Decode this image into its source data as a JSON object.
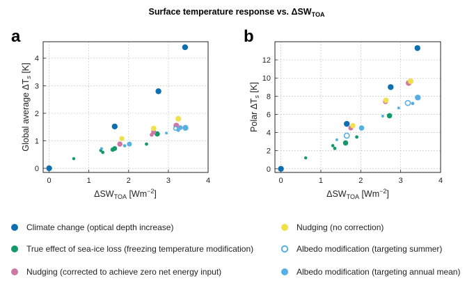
{
  "figure": {
    "title": "Surface temperature response vs. ΔSW",
    "title_sub": "TOA"
  },
  "colors": {
    "climate_change": "#0e6fb0",
    "sea_ice": "#13986a",
    "nudging_corrected": "#cf78a8",
    "nudging_no_corr": "#f1e04a",
    "albedo_summer": "#56b0e3",
    "albedo_annual": "#56b0e3"
  },
  "legend": [
    {
      "key": "climate_change",
      "label": "Climate change (optical depth increase)",
      "marker": "filled"
    },
    {
      "key": "sea_ice",
      "label": "True effect of sea-ice loss (freezing temperature modification)",
      "marker": "filled"
    },
    {
      "key": "nudging_corrected",
      "label": "Nudging (corrected to achieve zero net energy input)",
      "marker": "filled"
    },
    {
      "key": "nudging_no_corr",
      "label": "Nudging (no correction)",
      "marker": "filled"
    },
    {
      "key": "albedo_summer",
      "label": "Albedo modification (targeting summer)",
      "marker": "hollow"
    },
    {
      "key": "albedo_annual",
      "label": "Albedo modification (targeting annual mean)",
      "marker": "filled"
    }
  ],
  "chart_data": [
    {
      "type": "scatter",
      "panel": "a",
      "xlabel_main": "ΔSW",
      "xlabel_sub": "TOA",
      "xlabel_units": "[Wm",
      "xlabel_exp": "−2",
      "xlabel_close": "]",
      "ylabel": "Global average ΔT",
      "ylabel_sub": "s",
      "ylabel_units": " [K]",
      "xlim": [
        -0.15,
        4.0
      ],
      "ylim": [
        -0.15,
        4.6
      ],
      "xticks": [
        0,
        1,
        2,
        3,
        4
      ],
      "yticks": [
        0,
        1,
        2,
        3,
        4
      ],
      "grid": true,
      "series": [
        {
          "key": "climate_change",
          "name": "Climate change (optical depth increase)",
          "x": [
            0.0,
            1.65,
            2.75,
            3.42
          ],
          "y": [
            0.0,
            1.52,
            2.8,
            4.4
          ],
          "size": [
            4.2,
            4.2,
            4.2,
            4.2
          ]
        },
        {
          "key": "sea_ice",
          "name": "True effect of sea-ice loss (freezing temperature modification)",
          "x": [
            0.62,
            1.3,
            1.35,
            1.6,
            1.65,
            2.45,
            2.72
          ],
          "y": [
            0.35,
            0.65,
            0.58,
            0.68,
            0.72,
            0.88,
            1.25
          ],
          "size": [
            2.2,
            2.3,
            2.4,
            3.2,
            3.4,
            2.4,
            3.8
          ]
        },
        {
          "key": "albedo_annual",
          "name": "Albedo modification (targeting annual mean)",
          "x": [
            1.32,
            1.9,
            2.02,
            2.95,
            3.25,
            3.3,
            3.43
          ],
          "y": [
            0.72,
            0.82,
            0.88,
            1.28,
            1.38,
            1.48,
            1.47
          ],
          "size": [
            2.0,
            2.4,
            3.5,
            2.0,
            2.4,
            3.4,
            4.2
          ]
        },
        {
          "key": "nudging_corrected",
          "name": "Nudging (corrected to achieve zero net energy input)",
          "x": [
            1.78,
            2.58,
            2.63,
            3.2
          ],
          "y": [
            0.88,
            1.22,
            1.32,
            1.55
          ],
          "size": [
            3.8,
            2.8,
            3.6,
            4.2
          ]
        },
        {
          "key": "nudging_no_corr",
          "name": "Nudging (no correction)",
          "x": [
            1.83,
            2.63,
            3.25
          ],
          "y": [
            1.08,
            1.45,
            1.8
          ],
          "size": [
            3.6,
            3.9,
            4.1
          ]
        },
        {
          "key": "albedo_summer",
          "name": "Albedo modification (targeting summer)",
          "x": [
            3.18
          ],
          "y": [
            1.45
          ],
          "size": [
            2.6
          ],
          "hollow": true
        }
      ]
    },
    {
      "type": "scatter",
      "panel": "b",
      "xlabel_main": "ΔSW",
      "xlabel_sub": "TOA",
      "xlabel_units": "[Wm",
      "xlabel_exp": "−2",
      "xlabel_close": "]",
      "ylabel": "Polar ΔT",
      "ylabel_sub": "s",
      "ylabel_units": " [K]",
      "xlim": [
        -0.15,
        4.0
      ],
      "ylim": [
        -0.4,
        14.0
      ],
      "xticks": [
        0,
        1,
        2,
        3,
        4
      ],
      "yticks": [
        0,
        2,
        4,
        6,
        8,
        10,
        12
      ],
      "grid": true,
      "series": [
        {
          "key": "climate_change",
          "name": "Climate change (optical depth increase)",
          "x": [
            0.0,
            1.65,
            2.75,
            3.42
          ],
          "y": [
            0.0,
            4.95,
            9.0,
            13.3
          ],
          "size": [
            4.2,
            4.2,
            4.2,
            4.2
          ]
        },
        {
          "key": "sea_ice",
          "name": "True effect of sea-ice loss (freezing temperature modification)",
          "x": [
            0.62,
            1.3,
            1.35,
            1.62,
            1.9,
            2.72
          ],
          "y": [
            1.2,
            2.55,
            2.25,
            2.85,
            3.5,
            5.85
          ],
          "size": [
            2.2,
            2.3,
            2.4,
            3.8,
            2.4,
            3.8
          ]
        },
        {
          "key": "albedo_annual",
          "name": "Albedo modification (targeting annual mean)",
          "x": [
            1.4,
            2.02,
            2.55,
            2.95,
            3.3,
            3.43
          ],
          "y": [
            3.2,
            4.5,
            5.8,
            6.7,
            7.2,
            7.85
          ],
          "size": [
            2.0,
            3.8,
            2.0,
            2.0,
            2.4,
            4.2
          ]
        },
        {
          "key": "nudging_corrected",
          "name": "Nudging (corrected to achieve zero net energy input)",
          "x": [
            1.75,
            2.62,
            3.2
          ],
          "y": [
            4.5,
            7.4,
            9.45
          ],
          "size": [
            3.6,
            3.6,
            4.1
          ]
        },
        {
          "key": "nudging_no_corr",
          "name": "Nudging (no correction)",
          "x": [
            1.8,
            2.63,
            3.25
          ],
          "y": [
            4.75,
            7.55,
            9.65
          ],
          "size": [
            3.8,
            3.9,
            4.1
          ]
        },
        {
          "key": "albedo_summer",
          "name": "Albedo modification (targeting summer)",
          "x": [
            1.65,
            3.18
          ],
          "y": [
            3.65,
            7.25
          ],
          "size": [
            3.6,
            3.6
          ],
          "hollow": true
        }
      ]
    }
  ]
}
